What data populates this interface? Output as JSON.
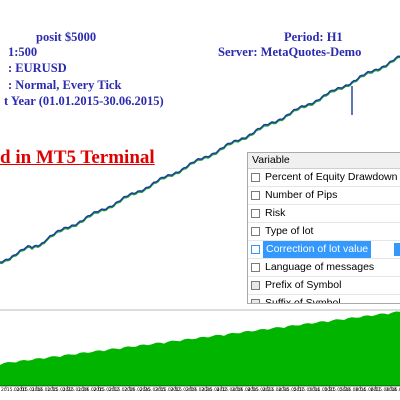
{
  "info": {
    "deposit": "posit $5000",
    "leverage": "1:500",
    "symbol": ": EURUSD",
    "model": ": Normal, Every Tick",
    "period_range": "t Year (01.01.2015-30.06.2015)",
    "timeframe": "Period: H1",
    "server": "Server: MetaQuotes-Demo"
  },
  "headline": "d in MT5 Terminal",
  "panel": {
    "header": "Variable",
    "items": [
      {
        "label": "Percent of Equity Drawdown",
        "checked": false,
        "selected": false,
        "disabled": false
      },
      {
        "label": "Number of Pips",
        "checked": false,
        "selected": false,
        "disabled": false
      },
      {
        "label": "Risk",
        "checked": false,
        "selected": false,
        "disabled": false
      },
      {
        "label": "Type of lot",
        "checked": false,
        "selected": false,
        "disabled": false
      },
      {
        "label": "Correction of lot value",
        "checked": false,
        "selected": true,
        "disabled": false
      },
      {
        "label": "Language of messages",
        "checked": false,
        "selected": false,
        "disabled": false
      },
      {
        "label": "Prefix of Symbol",
        "checked": false,
        "selected": false,
        "disabled": true
      },
      {
        "label": "Suffix of Symbol",
        "checked": false,
        "selected": false,
        "disabled": true
      }
    ]
  },
  "chart_data": {
    "type": "line",
    "series": [
      {
        "role": "balance",
        "color": "#1a3c9c"
      },
      {
        "role": "equity",
        "color": "#1e9a3a"
      }
    ],
    "x_tick_labels": [
      "2015.01.01",
      "2015.01.08",
      "2015.01.15",
      "2015.01.22",
      "2015.01.29",
      "2015.02.05",
      "2015.02.12",
      "2015.02.19",
      "2015.02.26",
      "2015.03.05",
      "2015.03.12",
      "2015.03.19",
      "2015.03.26",
      "2015.04.02",
      "2015.04.09",
      "2015.04.16",
      "2015.04.23",
      "2015.04.30",
      "2015.05.07",
      "2015.05.14",
      "2015.05.21",
      "2015.05.28",
      "2015.06.04",
      "2015.06.11",
      "2015.06.18",
      "2015.06.25"
    ],
    "volume_color": "#00b400"
  }
}
